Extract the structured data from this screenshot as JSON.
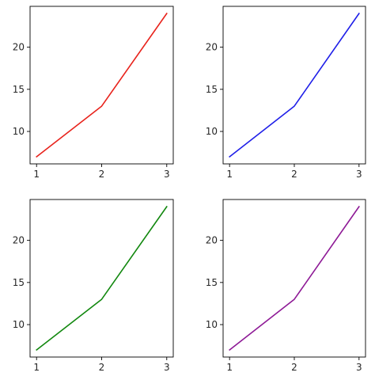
{
  "chart_data": [
    {
      "type": "line",
      "x": [
        1,
        2,
        3
      ],
      "series": [
        {
          "values": [
            7,
            13,
            24
          ],
          "color": "#e8231c"
        }
      ],
      "xticks": [
        1,
        2,
        3
      ],
      "yticks": [
        10,
        15,
        20
      ],
      "xlim": [
        0.9,
        3.1
      ],
      "ylim": [
        6.15,
        24.85
      ],
      "grid": false,
      "title": "",
      "xlabel": "",
      "ylabel": ""
    },
    {
      "type": "line",
      "x": [
        1,
        2,
        3
      ],
      "series": [
        {
          "values": [
            7,
            13,
            24
          ],
          "color": "#1f1fe8"
        }
      ],
      "xticks": [
        1,
        2,
        3
      ],
      "yticks": [
        10,
        15,
        20
      ],
      "xlim": [
        0.9,
        3.1
      ],
      "ylim": [
        6.15,
        24.85
      ],
      "grid": false,
      "title": "",
      "xlabel": "",
      "ylabel": ""
    },
    {
      "type": "line",
      "x": [
        1,
        2,
        3
      ],
      "series": [
        {
          "values": [
            7,
            13,
            24
          ],
          "color": "#12880f"
        }
      ],
      "xticks": [
        1,
        2,
        3
      ],
      "yticks": [
        10,
        15,
        20
      ],
      "xlim": [
        0.9,
        3.1
      ],
      "ylim": [
        6.15,
        24.85
      ],
      "grid": false,
      "title": "",
      "xlabel": "",
      "ylabel": ""
    },
    {
      "type": "line",
      "x": [
        1,
        2,
        3
      ],
      "series": [
        {
          "values": [
            7,
            13,
            24
          ],
          "color": "#8e1a96"
        }
      ],
      "xticks": [
        1,
        2,
        3
      ],
      "yticks": [
        10,
        15,
        20
      ],
      "xlim": [
        0.9,
        3.1
      ],
      "ylim": [
        6.15,
        24.85
      ],
      "grid": false,
      "title": "",
      "xlabel": "",
      "ylabel": ""
    }
  ]
}
